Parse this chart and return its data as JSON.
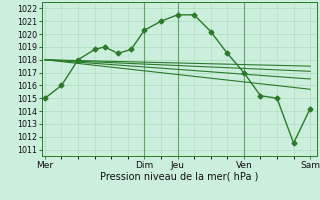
{
  "xlabel": "Pression niveau de la mer( hPa )",
  "bg_color": "#cceedd",
  "grid_color": "#aaddbb",
  "line_color": "#2a7a2a",
  "ylim": [
    1010.5,
    1022.5
  ],
  "yticks": [
    1011,
    1012,
    1013,
    1014,
    1015,
    1016,
    1017,
    1018,
    1019,
    1020,
    1021,
    1022
  ],
  "xlim": [
    -0.1,
    8.2
  ],
  "xtick_labels": [
    "Mer",
    "Dim",
    "Jeu",
    "Ven",
    "Sam"
  ],
  "xtick_positions": [
    0,
    3,
    4,
    6,
    8
  ],
  "main_series": {
    "x": [
      0,
      0.5,
      1.0,
      1.5,
      1.8,
      2.2,
      2.6,
      3.0,
      3.5,
      4.0,
      4.5,
      5.0,
      5.5,
      6.0,
      6.5,
      7.0,
      7.5,
      8.0
    ],
    "y": [
      1015.0,
      1016.0,
      1018.0,
      1018.8,
      1019.0,
      1018.5,
      1018.8,
      1020.3,
      1021.0,
      1021.5,
      1021.5,
      1020.2,
      1018.5,
      1017.0,
      1015.2,
      1015.0,
      1011.5,
      1014.2
    ]
  },
  "fan_lines": [
    {
      "x": [
        0,
        8
      ],
      "y": [
        1018.0,
        1017.5
      ]
    },
    {
      "x": [
        0,
        8
      ],
      "y": [
        1018.0,
        1017.1
      ]
    },
    {
      "x": [
        0,
        8
      ],
      "y": [
        1018.0,
        1016.5
      ]
    },
    {
      "x": [
        0,
        8
      ],
      "y": [
        1018.0,
        1015.7
      ]
    }
  ],
  "vlines": [
    3,
    4,
    6
  ]
}
